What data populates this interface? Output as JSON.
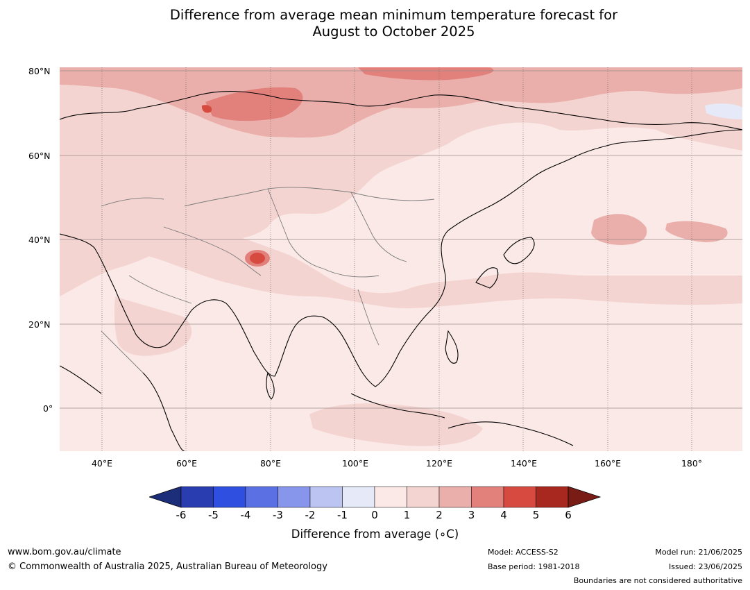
{
  "title": {
    "line1": "Difference from average mean minimum temperature forecast for",
    "line2": "August to October 2025"
  },
  "map": {
    "lat_labels": [
      "80°N",
      "60°N",
      "40°N",
      "20°N",
      "0°"
    ],
    "lon_labels": [
      "40°E",
      "60°E",
      "80°E",
      "100°E",
      "120°E",
      "140°E",
      "160°E",
      "180°"
    ],
    "lat_range": [
      -10,
      80
    ],
    "lon_range": [
      30,
      192
    ],
    "background_class": "0 to 1"
  },
  "colorbar": {
    "title": "Difference from average (∘C)",
    "ticks": [
      "-6",
      "-5",
      "-4",
      "-3",
      "-2",
      "-1",
      "0",
      "1",
      "2",
      "3",
      "4",
      "5",
      "6"
    ],
    "colors": [
      "#1c2e7a",
      "#2a3db0",
      "#2f4fe0",
      "#5b70e2",
      "#8796ea",
      "#bcc5f2",
      "#e6e9f8",
      "#fbe9e7",
      "#f4d4d1",
      "#ebafab",
      "#e2807b",
      "#d64a40",
      "#a8281f",
      "#7a1c16"
    ]
  },
  "footer": {
    "url": "www.bom.gov.au/climate",
    "copyright": "© Commonwealth of Australia 2025, Australian Bureau of Meteorology",
    "model": "Model: ACCESS-S2",
    "base_period": "Base period: 1981-2018",
    "model_run": "Model run: 21/06/2025",
    "issued": "Issued: 23/06/2025",
    "disclaimer": "Boundaries are not considered authoritative"
  }
}
